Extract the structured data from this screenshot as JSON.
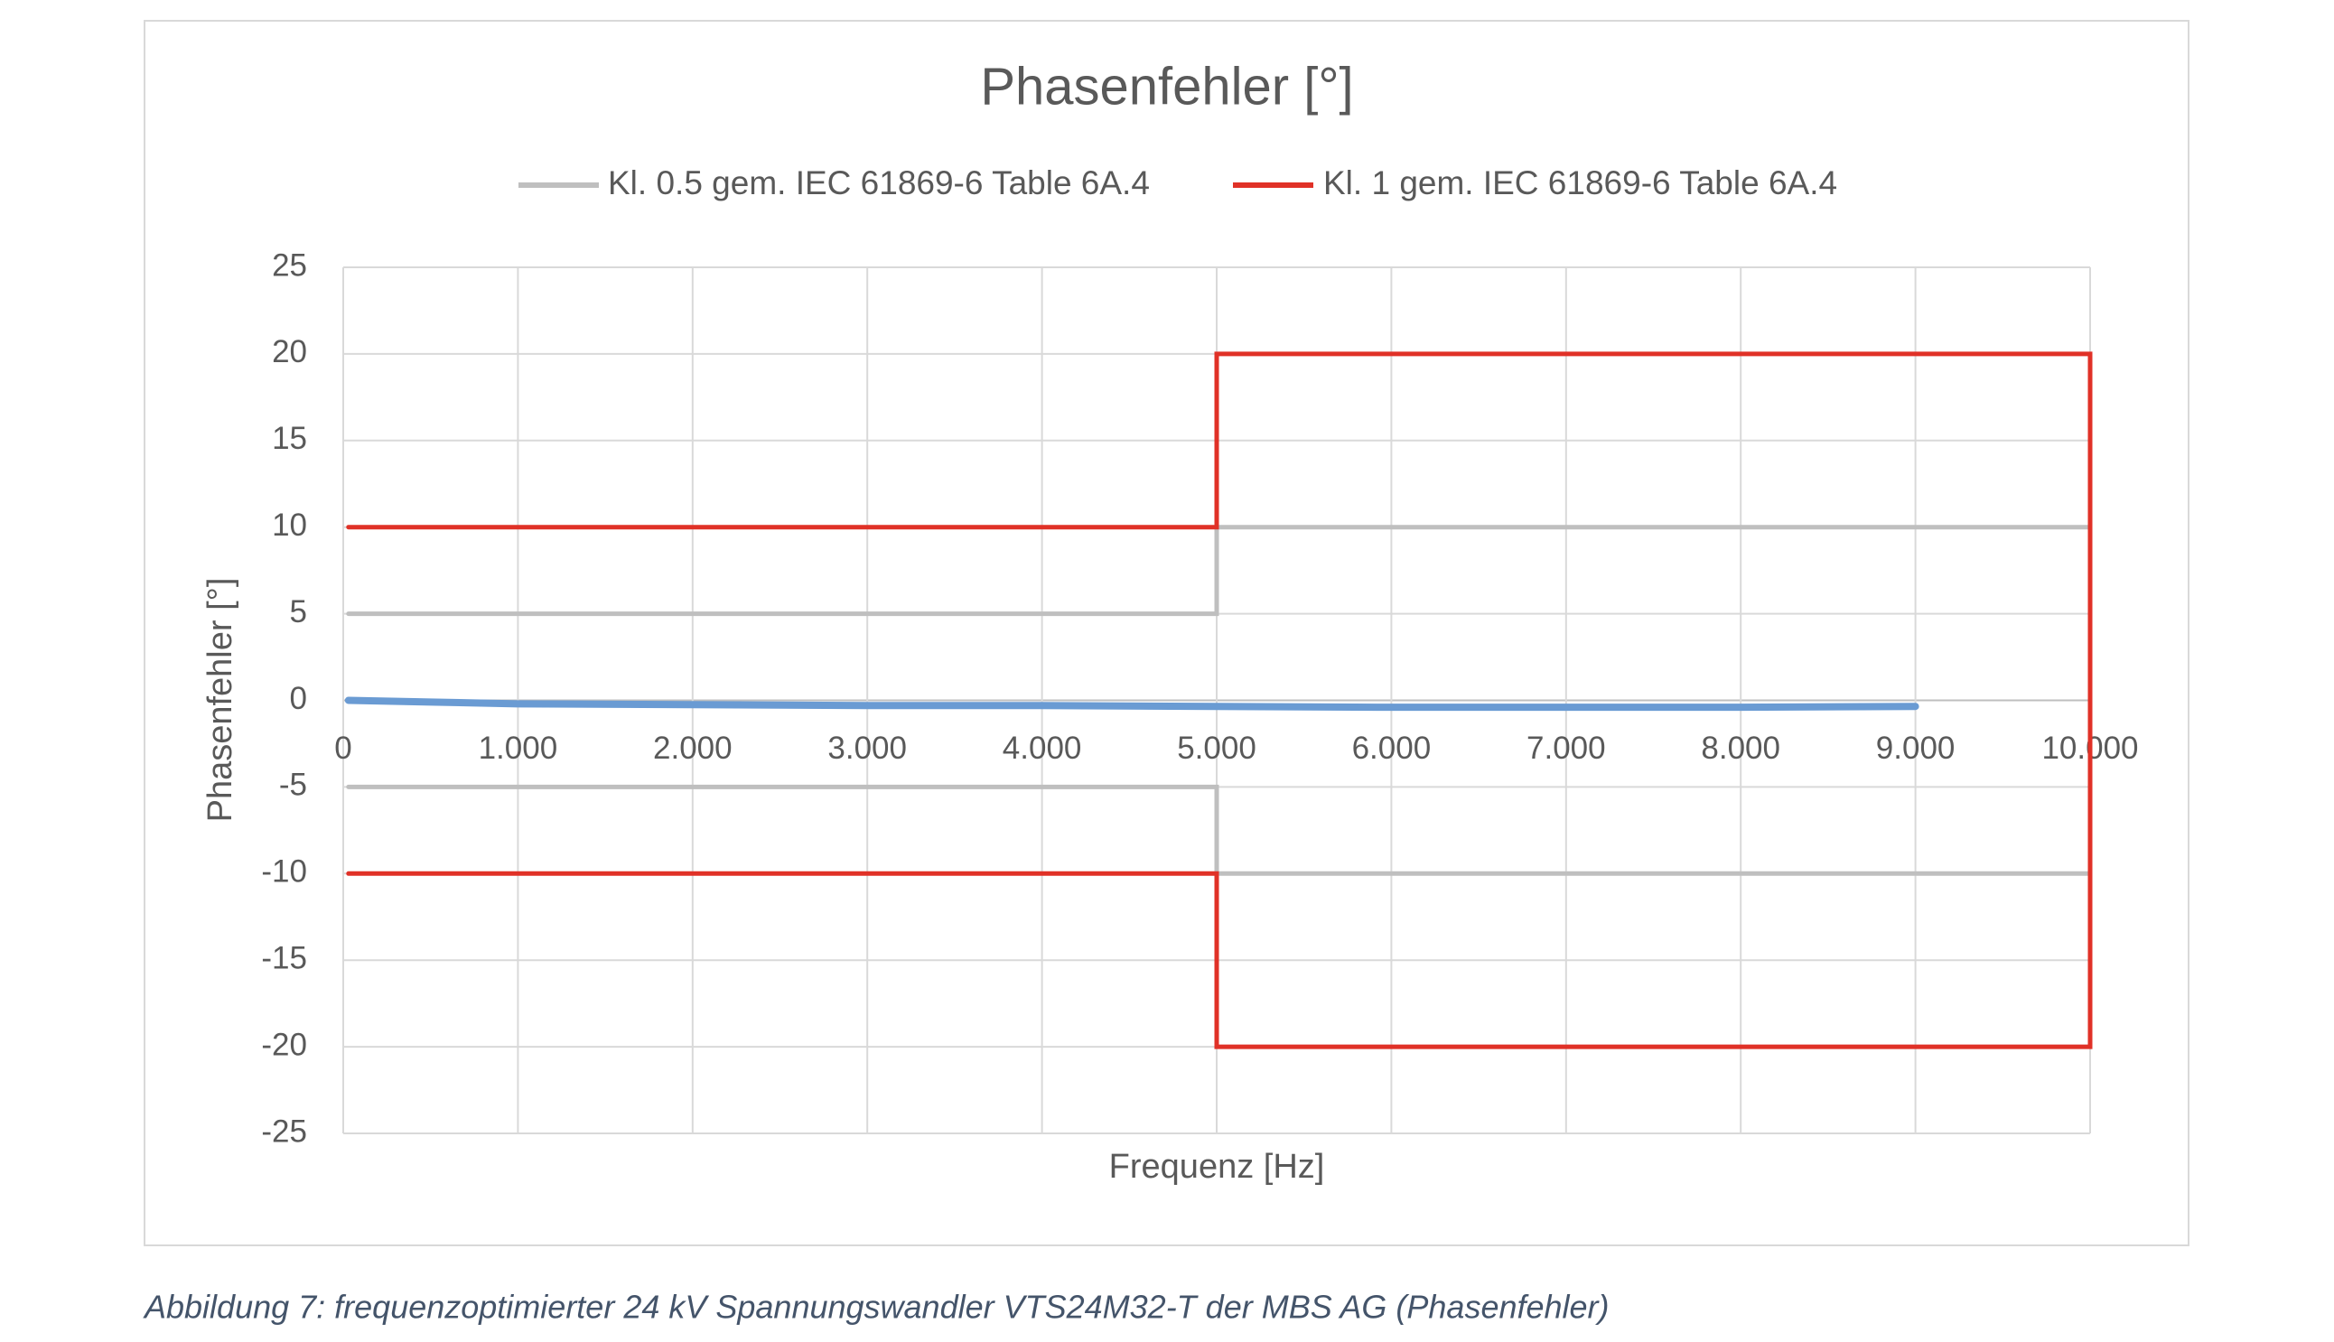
{
  "chart_data": {
    "type": "line",
    "title": "Phasenfehler [°]",
    "x_label": "Frequenz [Hz]",
    "y_label": "Phasenfehler [°]",
    "caption": "Abbildung 7: frequenzoptimierter 24 kV Spannungswandler VTS24M32-T der MBS AG (Phasenfehler)",
    "xlim": [
      0,
      10000
    ],
    "ylim": [
      -25,
      25
    ],
    "xticks": [
      0,
      {
        "value": 1000,
        "label": "1.000"
      },
      {
        "value": 2000,
        "label": "2.000"
      },
      {
        "value": 3000,
        "label": "3.000"
      },
      {
        "value": 4000,
        "label": "4.000"
      },
      {
        "value": 5000,
        "label": "5.000"
      },
      {
        "value": 6000,
        "label": "6.000"
      },
      {
        "value": 7000,
        "label": "7.000"
      },
      {
        "value": 8000,
        "label": "8.000"
      },
      {
        "value": 9000,
        "label": "9.000"
      },
      {
        "value": 10000,
        "label": "10.000"
      }
    ],
    "yticks": [
      25,
      20,
      15,
      10,
      5,
      0,
      -5,
      -10,
      -15,
      -20,
      -25
    ],
    "grid": true,
    "legend": "top",
    "series": [
      {
        "name": "Kl. 0.5 gem. IEC 61869-6 Table 6A.4",
        "color": "#bfbfbf",
        "x": [
          30,
          5000,
          5000,
          10000,
          10000,
          5000,
          5000,
          30
        ],
        "values": [
          5,
          5,
          10,
          10,
          -10,
          -10,
          -5,
          -5
        ]
      },
      {
        "name": "Kl. 1 gem. IEC 61869-6 Table 6A.4",
        "color": "#e03127",
        "x": [
          30,
          5000,
          5000,
          10000,
          10000,
          5000,
          5000,
          30
        ],
        "values": [
          10,
          10,
          20,
          20,
          -20,
          -20,
          -10,
          -10
        ]
      },
      {
        "color": "#6a9bd3",
        "x": [
          30,
          500,
          1000,
          2000,
          3000,
          4000,
          5000,
          6000,
          7000,
          8000,
          9000
        ],
        "values": [
          0,
          -0.1,
          -0.2,
          -0.25,
          -0.3,
          -0.3,
          -0.35,
          -0.4,
          -0.4,
          -0.4,
          -0.35
        ]
      }
    ]
  }
}
